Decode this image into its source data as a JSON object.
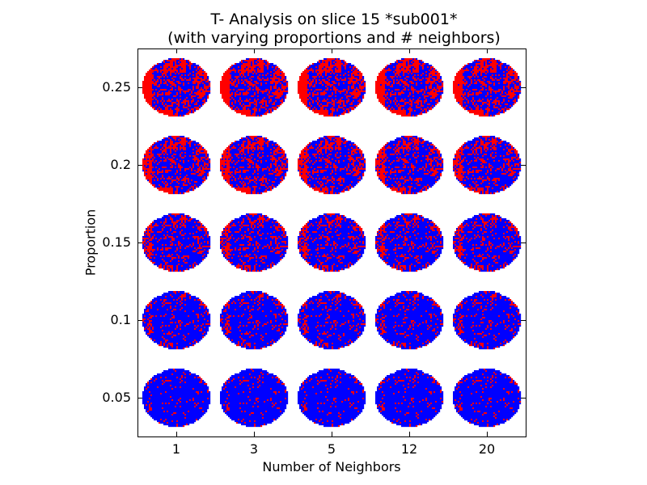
{
  "chart_data": {
    "type": "heatmap",
    "title": "T- Analysis on slice 15 *sub001*",
    "subtitle": "(with varying proportions and # neighbors)",
    "xlabel": "Number of Neighbors",
    "ylabel": "Proportion",
    "x": [
      "1",
      "3",
      "5",
      "12",
      "20"
    ],
    "y": [
      "0.25",
      "0.2",
      "0.15",
      "0.1",
      "0.05"
    ],
    "grid": false,
    "colors": {
      "brain": "#0000ff",
      "significant": "#ff0000",
      "background": "#ffffff"
    },
    "red_density": [
      [
        0.22,
        0.22,
        0.22,
        0.21,
        0.2
      ],
      [
        0.18,
        0.18,
        0.17,
        0.16,
        0.15
      ],
      [
        0.13,
        0.13,
        0.12,
        0.11,
        0.11
      ],
      [
        0.08,
        0.08,
        0.08,
        0.07,
        0.07
      ],
      [
        0.04,
        0.04,
        0.04,
        0.04,
        0.04
      ]
    ]
  }
}
